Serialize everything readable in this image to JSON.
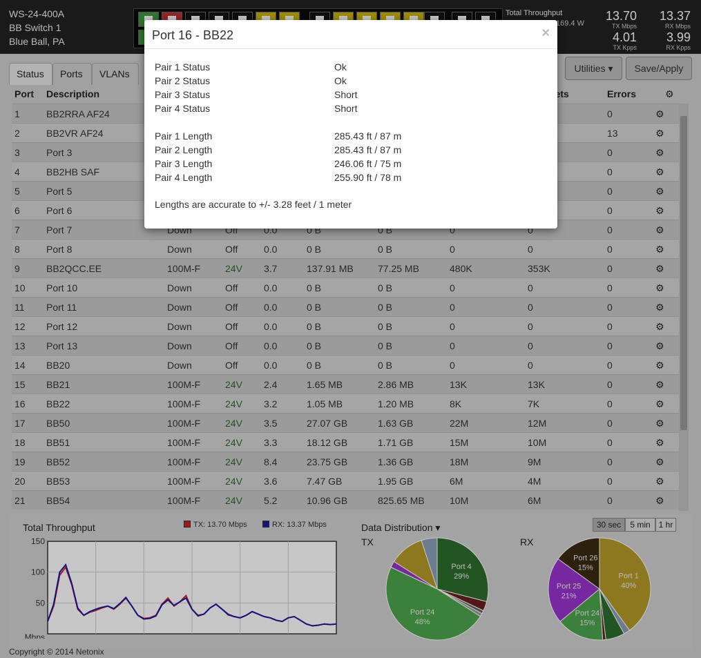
{
  "header": {
    "model": "WS-24-400A",
    "name": "BB Switch 1",
    "location": "Blue Ball, PA",
    "throughput_title": "Total Throughput",
    "power": "169.4 W",
    "tx_mbps": "13.70",
    "tx_mbps_label": "TX Mbps",
    "rx_mbps": "13.37",
    "rx_mbps_label": "RX Mbps",
    "tx_kpps": "4.01",
    "tx_kpps_label": "TX Kpps",
    "rx_kpps": "3.99",
    "rx_kpps_label": "RX Kpps"
  },
  "tabs": [
    {
      "label": "Status"
    },
    {
      "label": "Ports"
    },
    {
      "label": "VLANs"
    }
  ],
  "buttons": {
    "utilities": "Utilities ▾",
    "save": "Save/Apply"
  },
  "table": {
    "columns": {
      "port": "Port",
      "description": "Description",
      "packets": "ckets",
      "errors": "Errors"
    },
    "rows": [
      [
        "1",
        "BB2RRA AF24",
        "",
        "",
        "",
        "",
        "",
        "",
        "",
        "0"
      ],
      [
        "2",
        "BB2VR AF24",
        "",
        "",
        "",
        "",
        "",
        "",
        "",
        "13"
      ],
      [
        "3",
        "Port 3",
        "",
        "",
        "",
        "",
        "",
        "",
        "",
        "0"
      ],
      [
        "4",
        "BB2HB SAF",
        "",
        "",
        "",
        "",
        "",
        "",
        "",
        "0"
      ],
      [
        "5",
        "Port 5",
        "",
        "",
        "",
        "",
        "",
        "",
        "",
        "0"
      ],
      [
        "6",
        "Port 6",
        "",
        "",
        "",
        "",
        "",
        "",
        "",
        "0"
      ],
      [
        "7",
        "Port 7",
        "Down",
        "Off",
        "0.0",
        "0 B",
        "0 B",
        "0",
        "0",
        "0"
      ],
      [
        "8",
        "Port 8",
        "Down",
        "Off",
        "0.0",
        "0 B",
        "0 B",
        "0",
        "0",
        "0"
      ],
      [
        "9",
        "BB2QCC.EE",
        "100M-F",
        "24V",
        "3.7",
        "137.91 MB",
        "77.25 MB",
        "480K",
        "353K",
        "0"
      ],
      [
        "10",
        "Port 10",
        "Down",
        "Off",
        "0.0",
        "0 B",
        "0 B",
        "0",
        "0",
        "0"
      ],
      [
        "11",
        "Port 11",
        "Down",
        "Off",
        "0.0",
        "0 B",
        "0 B",
        "0",
        "0",
        "0"
      ],
      [
        "12",
        "Port 12",
        "Down",
        "Off",
        "0.0",
        "0 B",
        "0 B",
        "0",
        "0",
        "0"
      ],
      [
        "13",
        "Port 13",
        "Down",
        "Off",
        "0.0",
        "0 B",
        "0 B",
        "0",
        "0",
        "0"
      ],
      [
        "14",
        "BB20",
        "Down",
        "Off",
        "0.0",
        "0 B",
        "0 B",
        "0",
        "0",
        "0"
      ],
      [
        "15",
        "BB21",
        "100M-F",
        "24V",
        "2.4",
        "1.65 MB",
        "2.86 MB",
        "13K",
        "13K",
        "0"
      ],
      [
        "16",
        "BB22",
        "100M-F",
        "24V",
        "3.2",
        "1.05 MB",
        "1.20 MB",
        "8K",
        "7K",
        "0"
      ],
      [
        "17",
        "BB50",
        "100M-F",
        "24V",
        "3.5",
        "27.07 GB",
        "1.63 GB",
        "22M",
        "12M",
        "0"
      ],
      [
        "18",
        "BB51",
        "100M-F",
        "24V",
        "3.3",
        "18.12 GB",
        "1.71 GB",
        "15M",
        "10M",
        "0"
      ],
      [
        "19",
        "BB52",
        "100M-F",
        "24V",
        "8.4",
        "23.75 GB",
        "1.36 GB",
        "18M",
        "9M",
        "0"
      ],
      [
        "20",
        "BB53",
        "100M-F",
        "24V",
        "3.6",
        "7.47 GB",
        "1.95 GB",
        "6M",
        "4M",
        "0"
      ],
      [
        "21",
        "BB54",
        "100M-F",
        "24V",
        "5.2",
        "10.96 GB",
        "825.65 MB",
        "10M",
        "6M",
        "0"
      ]
    ]
  },
  "bottom": {
    "throughput_title": "Total Throughput",
    "tx_legend": "TX: 13.70 Mbps",
    "rx_legend": "RX: 13.37 Mbps",
    "distribution_title": "Data Distribution ▾",
    "time_buttons": [
      "30 sec",
      "5 min",
      "1 hr"
    ],
    "tx_label": "TX",
    "rx_label": "RX"
  },
  "colors": {
    "tx_line": "#cc2222",
    "rx_line": "#1a1aa8"
  },
  "chart_data": [
    {
      "type": "line",
      "title": "Total Throughput",
      "ylabel": "Mbps",
      "ylim": [
        0,
        150
      ],
      "yticks": [
        "150",
        "100",
        "50"
      ],
      "grid": true,
      "legend": "top-right",
      "x": [
        0,
        1,
        2,
        3,
        4,
        5,
        6,
        7,
        8,
        9,
        10,
        11,
        12,
        13,
        14,
        15,
        16,
        17,
        18,
        19,
        20,
        21,
        22,
        23,
        24,
        25,
        26,
        27,
        28,
        29,
        30,
        31,
        32,
        33,
        34,
        35,
        36,
        37,
        38,
        39,
        40,
        41,
        42,
        43,
        44,
        45,
        46,
        47,
        48
      ],
      "series": [
        {
          "name": "TX: 13.70 Mbps",
          "values": [
            20,
            45,
            95,
            108,
            80,
            40,
            30,
            35,
            38,
            42,
            45,
            40,
            48,
            58,
            45,
            30,
            25,
            26,
            30,
            48,
            58,
            45,
            52,
            62,
            40,
            30,
            32,
            42,
            48,
            40,
            32,
            28,
            26,
            30,
            36,
            32,
            28,
            26,
            22,
            20,
            26,
            28,
            22,
            16,
            13,
            14,
            16,
            15,
            16
          ]
        },
        {
          "name": "RX: 13.37 Mbps",
          "values": [
            20,
            48,
            100,
            112,
            82,
            42,
            30,
            36,
            40,
            43,
            45,
            41,
            49,
            59,
            45,
            30,
            24,
            25,
            29,
            47,
            55,
            46,
            52,
            58,
            40,
            29,
            32,
            42,
            48,
            40,
            31,
            28,
            26,
            30,
            36,
            32,
            28,
            26,
            22,
            20,
            26,
            28,
            22,
            16,
            13,
            14,
            16,
            15,
            16
          ]
        }
      ]
    },
    {
      "type": "pie",
      "title": "TX",
      "slices": [
        {
          "label": "Port 4",
          "value": 29,
          "color": "#2d6d2d"
        },
        {
          "label": "",
          "value": 3,
          "color": "#6a1e1e"
        },
        {
          "label": "",
          "value": 1,
          "color": "#666666"
        },
        {
          "label": "",
          "value": 1,
          "color": "#999999"
        },
        {
          "label": "Port 24",
          "value": 48,
          "color": "#4ca64c"
        },
        {
          "label": "",
          "value": 2,
          "color": "#9933cc"
        },
        {
          "label": "",
          "value": 11,
          "color": "#b59a28"
        },
        {
          "label": "",
          "value": 5,
          "color": "#8ca0b8"
        }
      ]
    },
    {
      "type": "pie",
      "title": "RX",
      "slices": [
        {
          "label": "Port 1",
          "value": 40,
          "color": "#b59a28"
        },
        {
          "label": "",
          "value": 2,
          "color": "#8ca0b8"
        },
        {
          "label": "",
          "value": 6,
          "color": "#2d6d2d"
        },
        {
          "label": "",
          "value": 1,
          "color": "#6a1e1e"
        },
        {
          "label": "Port 24",
          "value": 15,
          "color": "#4ca64c"
        },
        {
          "label": "Port 25",
          "value": 21,
          "color": "#9933cc"
        },
        {
          "label": "Port 26",
          "value": 15,
          "color": "#3a2a10"
        }
      ]
    }
  ],
  "modal": {
    "title": "Port 16 - BB22",
    "close": "×",
    "rows": [
      {
        "label": "Pair 1 Status",
        "value": "Ok"
      },
      {
        "label": "Pair 2 Status",
        "value": "Ok"
      },
      {
        "label": "Pair 3 Status",
        "value": "Short"
      },
      {
        "label": "Pair 4 Status",
        "value": "Short"
      },
      {
        "label": "Pair 1 Length",
        "value": "285.43 ft / 87 m"
      },
      {
        "label": "Pair 2 Length",
        "value": "285.43 ft / 87 m"
      },
      {
        "label": "Pair 3 Length",
        "value": "246.06 ft / 75 m"
      },
      {
        "label": "Pair 4 Length",
        "value": "255.90 ft / 78 m"
      }
    ],
    "note": "Lengths are accurate to +/- 3.28 feet / 1 meter"
  },
  "footer": "Copyright © 2014 Netonix"
}
